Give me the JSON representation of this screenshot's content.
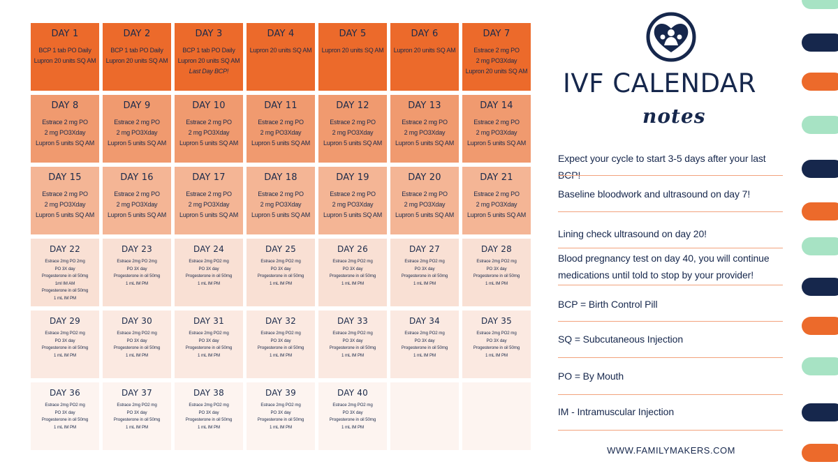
{
  "colors": {
    "navy": "#16274c",
    "orange_dark": "#ec6a2b",
    "orange_mid": "#f09a6f",
    "orange_light": "#f4b595",
    "peach_pale": "#f9e0d4",
    "peach_paler": "#fbe9e1",
    "mint": "#a7e3c4"
  },
  "logo_icon": "heart-family-icon",
  "title": "IVF CALENDAR",
  "subtitle": "notes",
  "notes": [
    "Expect your cycle to start 3-5 days after your last BCP!",
    "Baseline bloodwork and ultrasound on day 7!",
    "Lining check ultrasound on day 20!",
    "Blood pregnancy test on day 40, you will continue medications until told to stop by your provider!",
    "BCP = Birth Control Pill",
    "SQ = Subcutaneous Injection",
    "PO = By Mouth",
    "IM - Intramuscular Injection"
  ],
  "website": "WWW.FAMILYMAKERS.COM",
  "calendar": {
    "days": [
      {
        "label": "DAY 1",
        "lines": [
          "BCP 1 tab PO Daily",
          "Lupron 20 units SQ AM"
        ]
      },
      {
        "label": "DAY 2",
        "lines": [
          "BCP 1 tab PO Daily",
          "Lupron 20 units SQ AM"
        ]
      },
      {
        "label": "DAY 3",
        "lines": [
          "BCP 1 tab PO Daily",
          "Lupron 20 units SQ AM",
          "Last Day BCP!"
        ]
      },
      {
        "label": "DAY 4",
        "lines": [
          "Lupron 20 units SQ AM"
        ]
      },
      {
        "label": "DAY 5",
        "lines": [
          "Lupron 20 units SQ AM"
        ]
      },
      {
        "label": "DAY 6",
        "lines": [
          "Lupron 20 units SQ AM"
        ]
      },
      {
        "label": "DAY 7",
        "lines": [
          "Estrace 2 mg PO",
          "2 mg PO3Xday",
          "Lupron 20 units SQ AM"
        ]
      },
      {
        "label": "DAY 8",
        "lines": [
          "Estrace 2 mg PO",
          "2 mg PO3Xday",
          "Lupron 5 units SQ AM"
        ]
      },
      {
        "label": "DAY 9",
        "lines": [
          "Estrace 2 mg PO",
          "2 mg PO3Xday",
          "Lupron 5 units SQ AM"
        ]
      },
      {
        "label": "DAY 10",
        "lines": [
          "Estrace 2 mg PO",
          "2 mg PO3Xday",
          "Lupron 5 units SQ AM"
        ]
      },
      {
        "label": "DAY 11",
        "lines": [
          "Estrace 2 mg PO",
          "2 mg PO3Xday",
          "Lupron 5 units SQ AM"
        ]
      },
      {
        "label": "DAY 12",
        "lines": [
          "Estrace 2 mg PO",
          "2 mg PO3Xday",
          "Lupron 5 units SQ AM"
        ]
      },
      {
        "label": "DAY 13",
        "lines": [
          "Estrace 2 mg PO",
          "2 mg PO3Xday",
          "Lupron 5 units SQ AM"
        ]
      },
      {
        "label": "DAY 14",
        "lines": [
          "Estrace 2 mg PO",
          "2 mg PO3Xday",
          "Lupron 5 units SQ AM"
        ]
      },
      {
        "label": "DAY 15",
        "lines": [
          "Estrace 2 mg PO",
          "2 mg PO3Xday",
          "Lupron 5 units SQ AM"
        ]
      },
      {
        "label": "DAY 16",
        "lines": [
          "Estrace 2 mg PO",
          "2 mg PO3Xday",
          "Lupron 5 units SQ AM"
        ]
      },
      {
        "label": "DAY 17",
        "lines": [
          "Estrace 2 mg PO",
          "2 mg PO3Xday",
          "Lupron 5 units SQ AM"
        ]
      },
      {
        "label": "DAY 18",
        "lines": [
          "Estrace 2 mg PO",
          "2 mg PO3Xday",
          "Lupron 5 units SQ AM"
        ]
      },
      {
        "label": "DAY 19",
        "lines": [
          "Estrace 2 mg PO",
          "2 mg PO3Xday",
          "Lupron 5 units SQ AM"
        ]
      },
      {
        "label": "DAY 20",
        "lines": [
          "Estrace 2 mg PO",
          "2 mg PO3Xday",
          "Lupron 5 units SQ AM"
        ]
      },
      {
        "label": "DAY 21",
        "lines": [
          "Estrace 2 mg PO",
          "2 mg PO3Xday",
          "Lupron 5 units SQ AM"
        ]
      },
      {
        "label": "DAY 22",
        "lines": [
          "Estrace 2mg PO 2mg",
          "PO 3X day",
          "Progesterone in oil 50mg",
          "1ml IM AM",
          "Progesterone in oil 50mg",
          "1 mL IM PM"
        ]
      },
      {
        "label": "DAY 23",
        "lines": [
          "Estrace 2mg PO 2mg",
          "PO 3X day",
          "Progesterone in oil 50mg",
          "1 mL IM PM"
        ]
      },
      {
        "label": "DAY 24",
        "lines": [
          "Estrace 2mg PO2 mg",
          "PO 3X day",
          "Progesterone in oil 50mg",
          "1 mL IM PM"
        ]
      },
      {
        "label": "DAY 25",
        "lines": [
          "Estrace 2mg PO2 mg",
          "PO 3X day",
          "Progesterone in oil 50mg",
          "1 mL IM PM"
        ]
      },
      {
        "label": "DAY 26",
        "lines": [
          "Estrace 2mg PO2 mg",
          "PO 3X day",
          "Progesterone in oil 50mg",
          "1 mL IM PM"
        ]
      },
      {
        "label": "DAY 27",
        "lines": [
          "Estrace 2mg PO2 mg",
          "PO 3X day",
          "Progesterone in oil 50mg",
          "1 mL IM PM"
        ]
      },
      {
        "label": "DAY 28",
        "lines": [
          "Estrace 2mg PO2 mg",
          "PO 3X day",
          "Progesterone in oil 50mg",
          "1 mL IM PM"
        ]
      },
      {
        "label": "DAY 29",
        "lines": [
          "Estrace 2mg PO2 mg",
          "PO 3X day",
          "Progesterone in oil 50mg",
          "1 mL IM PM"
        ]
      },
      {
        "label": "DAY 30",
        "lines": [
          "Estrace 2mg PO2 mg",
          "PO 3X day",
          "Progesterone in oil 50mg",
          "1 mL IM PM"
        ]
      },
      {
        "label": "DAY 31",
        "lines": [
          "Estrace 2mg PO2 mg",
          "PO 3X day",
          "Progesterone in oil 50mg",
          "1 mL IM PM"
        ]
      },
      {
        "label": "DAY 32",
        "lines": [
          "Estrace 2mg PO2 mg",
          "PO 3X day",
          "Progesterone in oil 50mg",
          "1 mL IM PM"
        ]
      },
      {
        "label": "DAY 33",
        "lines": [
          "Estrace 2mg PO2 mg",
          "PO 3X day",
          "Progesterone in oil 50mg",
          "1 mL IM PM"
        ]
      },
      {
        "label": "DAY 34",
        "lines": [
          "Estrace 2mg PO2 mg",
          "PO 3X day",
          "Progesterone in oil 50mg",
          "1 mL IM PM"
        ]
      },
      {
        "label": "DAY 35",
        "lines": [
          "Estrace 2mg PO2 mg",
          "PO 3X day",
          "Progesterone in oil 50mg",
          "1 mL IM PM"
        ]
      },
      {
        "label": "DAY 36",
        "lines": [
          "Estrace 2mg PO2 mg",
          "PO 3X day",
          "Progesterone in oil 50mg",
          "1 mL IM PM"
        ]
      },
      {
        "label": "DAY 37",
        "lines": [
          "Estrace 2mg PO2 mg",
          "PO 3X day",
          "Progesterone in oil 50mg",
          "1 mL IM PM"
        ]
      },
      {
        "label": "DAY 38",
        "lines": [
          "Estrace 2mg PO2 mg",
          "PO 3X day",
          "Progesterone in oil 50mg",
          "1 mL IM PM"
        ]
      },
      {
        "label": "DAY 39",
        "lines": [
          "Estrace 2mg PO2 mg",
          "PO 3X day",
          "Progesterone in oil 50mg",
          "1 mL IM PM"
        ]
      },
      {
        "label": "DAY 40",
        "lines": [
          "Estrace 2mg PO2 mg",
          "PO 3X day",
          "Progesterone in oil 50mg",
          "1 mL IM PM"
        ]
      }
    ]
  }
}
